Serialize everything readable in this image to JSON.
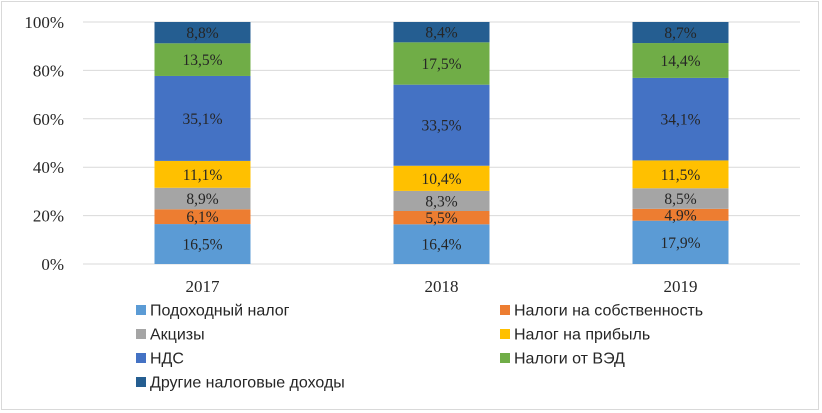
{
  "chart_data": {
    "type": "stacked-bar-100",
    "categories": [
      "2017",
      "2018",
      "2019"
    ],
    "yaxis": {
      "ticks": [
        "0%",
        "20%",
        "40%",
        "60%",
        "80%",
        "100%"
      ],
      "ylim": [
        0,
        100
      ]
    },
    "grid": true,
    "legend_position": "bottom",
    "series": [
      {
        "name": "Подоходный налог",
        "color": "#5b9bd5",
        "values": [
          16.5,
          16.4,
          17.9
        ],
        "labels": [
          "16,5%",
          "16,4%",
          "17,9%"
        ]
      },
      {
        "name": "Налоги на собственность",
        "color": "#ed7d31",
        "values": [
          6.1,
          5.5,
          4.9
        ],
        "labels": [
          "6,1%",
          "5,5%",
          "4,9%"
        ]
      },
      {
        "name": "Акцизы",
        "color": "#a5a5a5",
        "values": [
          8.9,
          8.3,
          8.5
        ],
        "labels": [
          "8,9%",
          "8,3%",
          "8,5%"
        ]
      },
      {
        "name": "Налог на прибыль",
        "color": "#ffc000",
        "values": [
          11.1,
          10.4,
          11.5
        ],
        "labels": [
          "11,1%",
          "10,4%",
          "11,5%"
        ]
      },
      {
        "name": "НДС",
        "color": "#4472c4",
        "values": [
          35.1,
          33.5,
          34.1
        ],
        "labels": [
          "35,1%",
          "33,5%",
          "34,1%"
        ]
      },
      {
        "name": "Налоги от ВЭД",
        "color": "#70ad47",
        "values": [
          13.5,
          17.5,
          14.4
        ],
        "labels": [
          "13,5%",
          "17,5%",
          "14,4%"
        ]
      },
      {
        "name": "Другие налоговые доходы",
        "color": "#255e91",
        "values": [
          8.8,
          8.4,
          8.7
        ],
        "labels": [
          "8,8%",
          "8,4%",
          "8,7%"
        ]
      }
    ]
  }
}
